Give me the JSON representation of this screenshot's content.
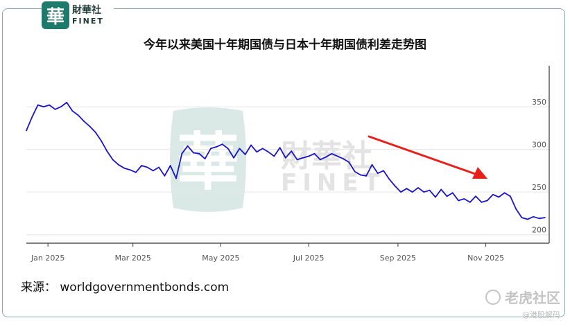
{
  "brand": {
    "seal": "華",
    "name_cn": "財華社",
    "name_en": "FINET"
  },
  "watermark": {
    "seal": "華",
    "name_cn": "財華社",
    "name_en": "FINET"
  },
  "title": "今年以来美国十年期国债与日本十年期国债利差走势图",
  "source": "来源：  worldgovernmentbonds.com",
  "tiger": {
    "name": "老虎社区",
    "handle": "@港股解码"
  },
  "colors": {
    "line": "#1a14c8",
    "arrow": "#e8201a",
    "grid": "#e6e6e6",
    "frame": "#8aa8a8",
    "brand": "#1e7a6a"
  },
  "chart_data": {
    "type": "line",
    "title": "今年以来美国十年期国债与日本十年期国债利差走势图",
    "x_ticks": [
      "Jan 2025",
      "Mar 2025",
      "May 2025",
      "Jul 2025",
      "Sep 2025",
      "Nov 2025"
    ],
    "y_ticks": [
      "350",
      "300",
      "250",
      "200"
    ],
    "ylim": [
      190,
      398
    ],
    "xlim": [
      "2024-12-17",
      "2025-12-15"
    ],
    "y_axis_side": "right",
    "grid": "horizontal",
    "series": [
      {
        "x": [
          "2024-12-17",
          "2024-12-21",
          "2024-12-25",
          "2024-12-29",
          "2025-01-02",
          "2025-01-06",
          "2025-01-10",
          "2025-01-14",
          "2025-01-18",
          "2025-01-22",
          "2025-01-26",
          "2025-01-30",
          "2025-02-03",
          "2025-02-07",
          "2025-02-11",
          "2025-02-15",
          "2025-02-19",
          "2025-02-23",
          "2025-02-27",
          "2025-03-03",
          "2025-03-07",
          "2025-03-11",
          "2025-03-15",
          "2025-03-19",
          "2025-03-23",
          "2025-03-27",
          "2025-03-31",
          "2025-04-04",
          "2025-04-08",
          "2025-04-12",
          "2025-04-16",
          "2025-04-20",
          "2025-04-24",
          "2025-04-28",
          "2025-05-02",
          "2025-05-06",
          "2025-05-10",
          "2025-05-14",
          "2025-05-18",
          "2025-05-22",
          "2025-05-26",
          "2025-05-30",
          "2025-06-03",
          "2025-06-07",
          "2025-06-11",
          "2025-06-15",
          "2025-06-19",
          "2025-06-23",
          "2025-06-27",
          "2025-07-01",
          "2025-07-05",
          "2025-07-09",
          "2025-07-13",
          "2025-07-17",
          "2025-07-21",
          "2025-07-25",
          "2025-07-29",
          "2025-08-02",
          "2025-08-06",
          "2025-08-10",
          "2025-08-14",
          "2025-08-18",
          "2025-08-22",
          "2025-08-26",
          "2025-08-30",
          "2025-09-03",
          "2025-09-07",
          "2025-09-11",
          "2025-09-15",
          "2025-09-19",
          "2025-09-23",
          "2025-09-27",
          "2025-10-01",
          "2025-10-05",
          "2025-10-09",
          "2025-10-13",
          "2025-10-17",
          "2025-10-21",
          "2025-10-25",
          "2025-10-29",
          "2025-11-02",
          "2025-11-06",
          "2025-11-10",
          "2025-11-14",
          "2025-11-18",
          "2025-11-22",
          "2025-11-26",
          "2025-11-30",
          "2025-12-04",
          "2025-12-08",
          "2025-12-12"
        ],
        "y": [
          322,
          338,
          352,
          350,
          352,
          347,
          350,
          355,
          345,
          340,
          333,
          327,
          320,
          310,
          298,
          288,
          282,
          278,
          276,
          273,
          281,
          279,
          275,
          279,
          269,
          281,
          266,
          295,
          304,
          296,
          295,
          289,
          301,
          303,
          306,
          301,
          290,
          301,
          294,
          305,
          297,
          301,
          297,
          292,
          302,
          290,
          298,
          288,
          290,
          292,
          295,
          288,
          291,
          295,
          292,
          289,
          285,
          274,
          270,
          269,
          282,
          272,
          275,
          265,
          257,
          250,
          254,
          250,
          255,
          250,
          252,
          244,
          253,
          245,
          249,
          240,
          242,
          238,
          245,
          238,
          240,
          247,
          244,
          249,
          245,
          230,
          220,
          218,
          221,
          219,
          220
        ]
      }
    ]
  }
}
